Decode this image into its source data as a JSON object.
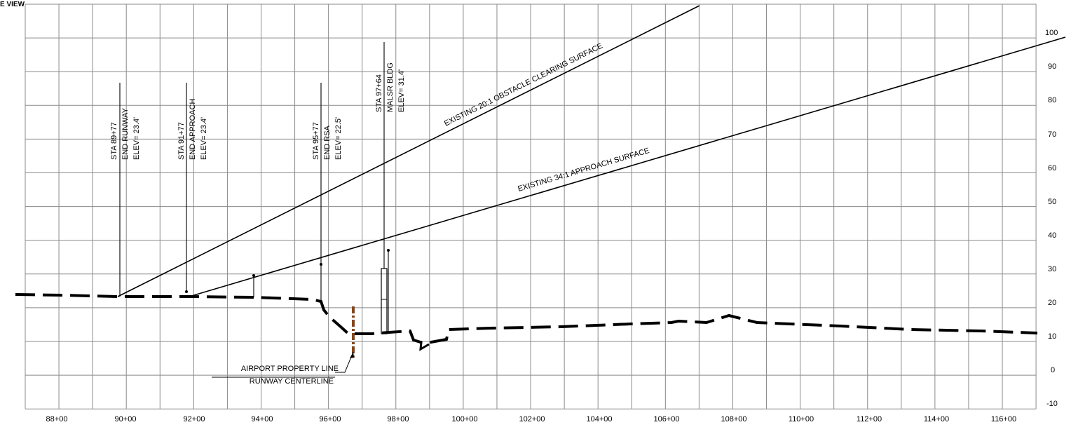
{
  "title": "E VIEW",
  "x_axis": {
    "tick_labels": [
      "88+00",
      "90+00",
      "92+00",
      "94+00",
      "96+00",
      "98+00",
      "100+00",
      "102+00",
      "104+00",
      "106+00",
      "108+00",
      "110+00",
      "112+00",
      "114+00",
      "116+00"
    ]
  },
  "y_axis": {
    "tick_labels": [
      "100",
      "90",
      "80",
      "70",
      "60",
      "50",
      "40",
      "30",
      "20",
      "10",
      "0",
      "-10"
    ]
  },
  "stations": [
    {
      "id": "end-runway",
      "lines": [
        "STA  89+77",
        "END  RUNWAY",
        "ELEV=  23.4'"
      ]
    },
    {
      "id": "end-approach",
      "lines": [
        "STA  91+77",
        "END  APPROACH",
        "ELEV=  23.4'"
      ]
    },
    {
      "id": "end-rsa",
      "lines": [
        "STA  95+77",
        "END  RSA",
        "ELEV=  22.5'"
      ]
    },
    {
      "id": "malsr-bldg",
      "lines": [
        "STA  97+64",
        "MALSR  BLDG",
        "ELEV=  31.4'"
      ]
    }
  ],
  "surfaces": {
    "ocs_label": "EXISTING  20:1  OBSTACLE  CLEARING  SURFACE",
    "approach_label": "EXISTING  34:1  APPROACH  SURFACE"
  },
  "callouts": {
    "property_line": "AIRPORT PROPERTY LINE",
    "runway_centerline": "RUNWAY CENTERLINE"
  },
  "colors": {
    "grid": "#8a8a8a",
    "line": "#000000",
    "property_line": "#8b4513"
  }
}
